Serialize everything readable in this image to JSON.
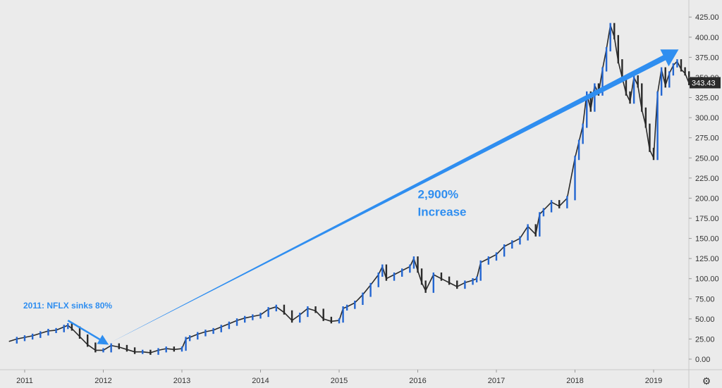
{
  "chart_data": {
    "type": "line",
    "title": "",
    "xlabel": "",
    "ylabel": "",
    "ylim": [
      0,
      425
    ],
    "xlim": [
      2011.0,
      2019.5
    ],
    "grid": false,
    "y_ticks": [
      "0.00",
      "25.00",
      "50.00",
      "75.00",
      "100.00",
      "125.00",
      "150.00",
      "175.00",
      "200.00",
      "225.00",
      "250.00",
      "275.00",
      "300.00",
      "325.00",
      "350.00",
      "375.00",
      "400.00",
      "425.00"
    ],
    "y_tick_values": [
      0,
      25,
      50,
      75,
      100,
      125,
      150,
      175,
      200,
      225,
      250,
      275,
      300,
      325,
      350,
      375,
      400,
      425
    ],
    "x_ticks": [
      "2011",
      "2012",
      "2013",
      "2014",
      "2015",
      "2016",
      "2017",
      "2018",
      "2019"
    ],
    "x_tick_values": [
      2011,
      2012,
      2013,
      2014,
      2015,
      2016,
      2017,
      2018,
      2019
    ],
    "series": [
      {
        "x": [
          2010.8,
          2010.9,
          2011.0,
          2011.1,
          2011.2,
          2011.3,
          2011.4,
          2011.5,
          2011.55,
          2011.6,
          2011.7,
          2011.8,
          2011.9,
          2012.0,
          2012.1,
          2012.2,
          2012.3,
          2012.4,
          2012.5,
          2012.6,
          2012.7,
          2012.8,
          2012.9,
          2013.0,
          2013.05,
          2013.1,
          2013.2,
          2013.3,
          2013.4,
          2013.5,
          2013.6,
          2013.7,
          2013.8,
          2013.9,
          2014.0,
          2014.1,
          2014.2,
          2014.3,
          2014.4,
          2014.5,
          2014.6,
          2014.7,
          2014.8,
          2014.9,
          2015.0,
          2015.05,
          2015.1,
          2015.2,
          2015.3,
          2015.4,
          2015.5,
          2015.55,
          2015.6,
          2015.7,
          2015.8,
          2015.9,
          2015.95,
          2016.0,
          2016.05,
          2016.1,
          2016.2,
          2016.3,
          2016.4,
          2016.5,
          2016.6,
          2016.7,
          2016.75,
          2016.8,
          2016.9,
          2017.0,
          2017.1,
          2017.2,
          2017.3,
          2017.4,
          2017.5,
          2017.55,
          2017.6,
          2017.7,
          2017.8,
          2017.9,
          2018.0,
          2018.05,
          2018.1,
          2018.15,
          2018.2,
          2018.25,
          2018.3,
          2018.35,
          2018.4,
          2018.45,
          2018.5,
          2018.55,
          2018.6,
          2018.65,
          2018.7,
          2018.75,
          2018.8,
          2018.85,
          2018.9,
          2018.95,
          2019.0,
          2019.05,
          2019.1,
          2019.15,
          2019.2,
          2019.25,
          2019.3,
          2019.35,
          2019.4,
          2019.45
        ],
        "values": [
          22,
          25,
          27,
          29,
          32,
          35,
          36,
          40,
          42,
          38,
          28,
          18,
          11,
          11,
          17,
          15,
          12,
          9,
          9,
          8,
          11,
          13,
          12,
          13,
          25,
          27,
          31,
          34,
          36,
          40,
          44,
          48,
          51,
          53,
          55,
          62,
          65,
          58,
          48,
          55,
          63,
          60,
          50,
          47,
          48,
          63,
          65,
          70,
          80,
          92,
          105,
          115,
          100,
          105,
          110,
          115,
          125,
          110,
          95,
          85,
          105,
          100,
          95,
          90,
          95,
          98,
          100,
          120,
          125,
          130,
          140,
          145,
          150,
          165,
          155,
          180,
          185,
          195,
          190,
          200,
          250,
          270,
          290,
          330,
          310,
          340,
          330,
          360,
          385,
          415,
          400,
          370,
          350,
          330,
          320,
          350,
          340,
          310,
          290,
          260,
          250,
          330,
          360,
          340,
          355,
          365,
          370,
          360,
          355,
          343
        ]
      }
    ],
    "annotations": [
      {
        "text": "2011: NFLX sinks 80%",
        "x": 2011.9,
        "y": 14
      },
      {
        "text": "2,900%",
        "x": 2016.0,
        "y": 200
      },
      {
        "text": "Increase",
        "x": 2016.0,
        "y": 178
      }
    ],
    "last_price": "343.43"
  },
  "colors": {
    "background": "#ebebeb",
    "series_line": "#2a2a2a",
    "up_candle": "#2366d1",
    "annotation": "#2f8ef0",
    "price_tag_bg": "#2b2b2b"
  },
  "icons": {
    "settings": "gear-icon"
  }
}
